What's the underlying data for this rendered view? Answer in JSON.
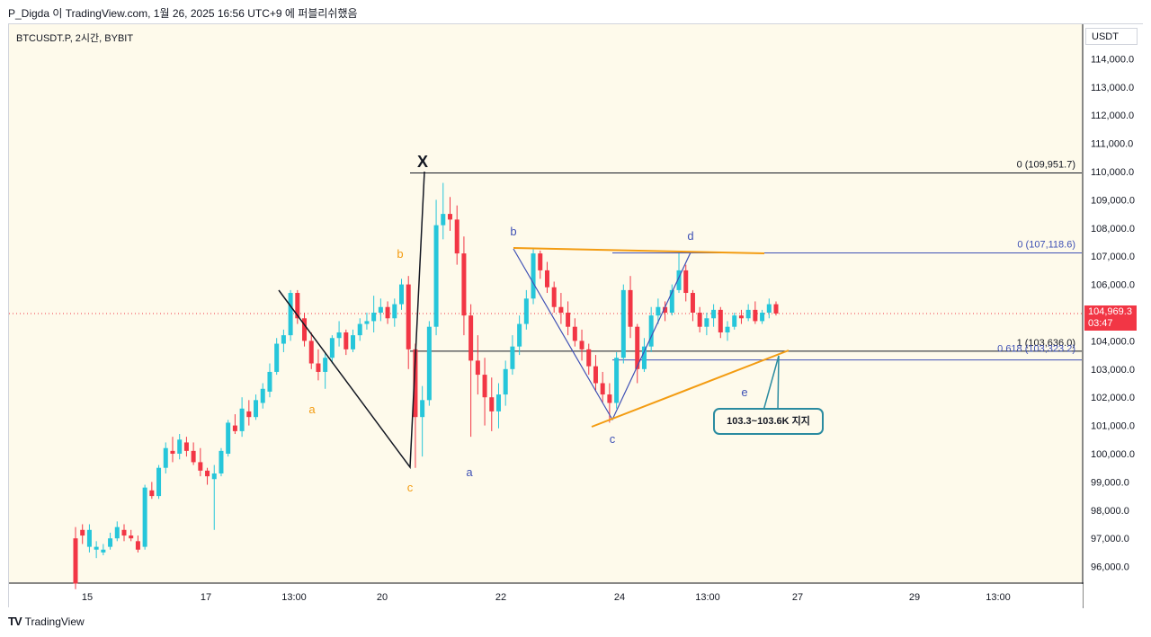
{
  "header": {
    "author_line": "P_Digda 이 TradingView.com, 1월 26, 2025 16:56 UTC+9 에 퍼블리쉬했음"
  },
  "symbol_line": "BTCUSDT.P, 2시간, BYBIT",
  "currency": "USDT",
  "footer": {
    "logo_text": "TradingView"
  },
  "last_price": {
    "value": "104,969.3",
    "countdown": "03:47"
  },
  "callout_text": "103.3~103.6K 지지",
  "colors": {
    "up": "#26c6da",
    "down": "#f23645",
    "orange": "#f39c12",
    "blue": "#3f51b5",
    "bg": "#fefaeb"
  },
  "chart_data": {
    "type": "candlestick",
    "ylim": [
      95000,
      114800
    ],
    "y_ticks": [
      "96,000.0",
      "97,000.0",
      "98,000.0",
      "99,000.0",
      "100,000.0",
      "101,000.0",
      "102,000.0",
      "103,000.0",
      "104,000.0",
      "105,000.0",
      "106,000.0",
      "107,000.0",
      "108,000.0",
      "109,000.0",
      "110,000.0",
      "111,000.0",
      "112,000.0",
      "113,000.0",
      "114,000.0"
    ],
    "x_ticks": [
      "15",
      "17",
      "13:00",
      "20",
      "22",
      "24",
      "13:00",
      "27",
      "29",
      "13:00"
    ],
    "fib_levels": [
      {
        "label": "0 (109,951.7)",
        "value": 109951.7,
        "color": "#131722"
      },
      {
        "label": "1 (103,636.0)",
        "value": 103636.0,
        "color": "#131722"
      },
      {
        "label": "0 (107,118.6)",
        "value": 107118.6,
        "color": "#3f51b5"
      },
      {
        "label": "0.618 (103,323.2)",
        "value": 103323.2,
        "color": "#3f51b5"
      }
    ],
    "wave_labels": [
      "X",
      "a",
      "b",
      "c",
      "a",
      "b",
      "c",
      "d",
      "e"
    ],
    "candles": [
      [
        97000,
        97400,
        95200,
        95400
      ],
      [
        97300,
        97500,
        96800,
        97100
      ],
      [
        96700,
        97500,
        96500,
        97300
      ],
      [
        96600,
        96900,
        96300,
        96700
      ],
      [
        96500,
        96800,
        96400,
        96600
      ],
      [
        96700,
        97200,
        96600,
        97000
      ],
      [
        97000,
        97600,
        96900,
        97400
      ],
      [
        97300,
        97500,
        96900,
        97100
      ],
      [
        97100,
        97300,
        96900,
        97000
      ],
      [
        96900,
        97100,
        96500,
        96600
      ],
      [
        96700,
        98900,
        96600,
        98800
      ],
      [
        98700,
        99000,
        98400,
        98500
      ],
      [
        98500,
        99600,
        98400,
        99500
      ],
      [
        99500,
        100400,
        99300,
        100200
      ],
      [
        100100,
        100600,
        99700,
        100000
      ],
      [
        100000,
        100700,
        99800,
        100500
      ],
      [
        100400,
        100600,
        99900,
        100100
      ],
      [
        100100,
        100400,
        99600,
        99700
      ],
      [
        99700,
        100200,
        99200,
        99400
      ],
      [
        99400,
        99500,
        98900,
        99200
      ],
      [
        99100,
        99600,
        97300,
        99300
      ],
      [
        99300,
        100200,
        99200,
        100100
      ],
      [
        100000,
        101200,
        99900,
        101100
      ],
      [
        101000,
        101400,
        100700,
        100800
      ],
      [
        100800,
        102000,
        100600,
        101600
      ],
      [
        101500,
        101900,
        101000,
        101300
      ],
      [
        101300,
        102100,
        101200,
        101900
      ],
      [
        101800,
        102500,
        101600,
        102300
      ],
      [
        102200,
        103200,
        102000,
        102900
      ],
      [
        102900,
        104100,
        102800,
        103900
      ],
      [
        103900,
        104400,
        103600,
        104200
      ],
      [
        104200,
        105800,
        104000,
        105700
      ],
      [
        105700,
        105800,
        104600,
        104800
      ],
      [
        104800,
        105000,
        103800,
        104000
      ],
      [
        104000,
        104300,
        103000,
        103200
      ],
      [
        103200,
        103700,
        102600,
        102900
      ],
      [
        102900,
        103600,
        102300,
        103400
      ],
      [
        103400,
        104200,
        103200,
        104100
      ],
      [
        104100,
        104700,
        103800,
        104300
      ],
      [
        104300,
        104400,
        103500,
        103700
      ],
      [
        103700,
        104400,
        103600,
        104200
      ],
      [
        104200,
        104800,
        104000,
        104600
      ],
      [
        104600,
        105000,
        104400,
        104700
      ],
      [
        104700,
        105600,
        104300,
        105000
      ],
      [
        105000,
        105500,
        104700,
        105200
      ],
      [
        105200,
        105400,
        104600,
        104800
      ],
      [
        104800,
        105500,
        104500,
        105300
      ],
      [
        105300,
        106200,
        105100,
        106000
      ],
      [
        106000,
        106300,
        103000,
        103700
      ],
      [
        103700,
        103900,
        99500,
        101300
      ],
      [
        101300,
        102400,
        99900,
        101900
      ],
      [
        101900,
        104700,
        101700,
        104500
      ],
      [
        104500,
        109000,
        104200,
        108100
      ],
      [
        108100,
        109600,
        107600,
        108500
      ],
      [
        108500,
        109100,
        107900,
        108300
      ],
      [
        108300,
        108800,
        106700,
        107100
      ],
      [
        107100,
        107700,
        104200,
        104900
      ],
      [
        104900,
        105300,
        100600,
        103300
      ],
      [
        103300,
        104200,
        102100,
        102800
      ],
      [
        102800,
        103400,
        101000,
        102000
      ],
      [
        102000,
        102700,
        100800,
        101500
      ],
      [
        101500,
        102500,
        100900,
        102100
      ],
      [
        102100,
        103300,
        101700,
        103000
      ],
      [
        103000,
        104200,
        102800,
        103800
      ],
      [
        103800,
        104900,
        103500,
        104600
      ],
      [
        104600,
        105800,
        104400,
        105500
      ],
      [
        105500,
        107300,
        105300,
        107100
      ],
      [
        107100,
        107200,
        106200,
        106500
      ],
      [
        106500,
        106800,
        105700,
        105900
      ],
      [
        105900,
        106100,
        105000,
        105200
      ],
      [
        105200,
        105700,
        104600,
        105000
      ],
      [
        105000,
        105400,
        104200,
        104500
      ],
      [
        104500,
        104800,
        103800,
        104000
      ],
      [
        104000,
        104400,
        103300,
        103700
      ],
      [
        103700,
        103900,
        102800,
        103100
      ],
      [
        103100,
        103500,
        102200,
        102500
      ],
      [
        102500,
        102900,
        101800,
        102100
      ],
      [
        102100,
        102500,
        101100,
        101800
      ],
      [
        101800,
        103600,
        101600,
        103400
      ],
      [
        103400,
        106000,
        103200,
        105800
      ],
      [
        105800,
        106300,
        104100,
        104500
      ],
      [
        104500,
        104600,
        102500,
        103000
      ],
      [
        103000,
        104100,
        102900,
        103800
      ],
      [
        103800,
        105200,
        103600,
        104900
      ],
      [
        104900,
        105500,
        104600,
        105200
      ],
      [
        105200,
        105400,
        104700,
        105000
      ],
      [
        105000,
        106000,
        104900,
        105800
      ],
      [
        105800,
        107100,
        105700,
        106500
      ],
      [
        106500,
        106700,
        105400,
        105700
      ],
      [
        105700,
        105800,
        104700,
        105000
      ],
      [
        105000,
        105200,
        104300,
        104500
      ],
      [
        104500,
        105000,
        104200,
        104800
      ],
      [
        104800,
        105300,
        104500,
        105100
      ],
      [
        105100,
        105200,
        104100,
        104300
      ],
      [
        104300,
        104700,
        104000,
        104500
      ],
      [
        104500,
        105000,
        104400,
        104900
      ],
      [
        104900,
        105100,
        104600,
        104800
      ],
      [
        104800,
        105300,
        104700,
        105100
      ],
      [
        105100,
        105400,
        104600,
        104700
      ],
      [
        104700,
        105100,
        104600,
        105000
      ],
      [
        105000,
        105500,
        104800,
        105300
      ],
      [
        105300,
        105400,
        104900,
        104969
      ]
    ]
  }
}
